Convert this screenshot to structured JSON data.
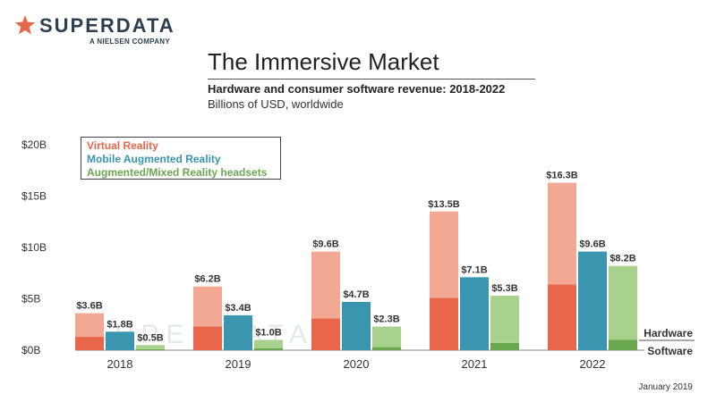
{
  "brand": {
    "name": "SUPERDATA",
    "tagline": "A NIELSEN COMPANY",
    "watermark": "SUPERDATA",
    "star_color": "#e8674a"
  },
  "title": "The Immersive Market",
  "subtitle": "Hardware and consumer software revenue: 2018-2022",
  "units": "Billions of USD, worldwide",
  "date": "January 2019",
  "chart_data": {
    "type": "bar",
    "categories": [
      "2018",
      "2019",
      "2020",
      "2021",
      "2022"
    ],
    "y_ticks": [
      "$0B",
      "$5B",
      "$10B",
      "$15B",
      "$20B"
    ],
    "ylim": [
      0,
      20
    ],
    "grid": false,
    "legend_position": "top-left",
    "stack_labels": {
      "top": "Hardware",
      "bottom": "Software"
    },
    "series": [
      {
        "name": "Virtual Reality",
        "color": "#e8674a",
        "light_color": "#f2a893",
        "totals": [
          3.6,
          6.2,
          9.6,
          13.5,
          16.3
        ],
        "labels": [
          "$3.6B",
          "$6.2B",
          "$9.6B",
          "$13.5B",
          "$16.3B"
        ],
        "software": [
          1.3,
          2.3,
          3.1,
          5.1,
          6.4
        ],
        "hardware": [
          2.3,
          3.9,
          6.5,
          8.4,
          9.9
        ]
      },
      {
        "name": "Mobile Augmented Reality",
        "color": "#3a95ae",
        "light_color": "#3a95ae",
        "totals": [
          1.8,
          3.4,
          4.7,
          7.1,
          9.6
        ],
        "labels": [
          "$1.8B",
          "$3.4B",
          "$4.7B",
          "$7.1B",
          "$9.6B"
        ],
        "software": [
          1.8,
          3.4,
          4.7,
          7.1,
          9.6
        ],
        "hardware": [
          0,
          0,
          0,
          0,
          0
        ]
      },
      {
        "name": "Augmented/Mixed Reality headsets",
        "color": "#6aa84f",
        "light_color": "#a9d18e",
        "totals": [
          0.5,
          1.0,
          2.3,
          5.3,
          8.2
        ],
        "labels": [
          "$0.5B",
          "$1.0B",
          "$2.3B",
          "$5.3B",
          "$8.2B"
        ],
        "software": [
          0.1,
          0.2,
          0.3,
          0.7,
          1.0
        ],
        "hardware": [
          0.4,
          0.8,
          2.0,
          4.6,
          7.2
        ]
      }
    ]
  }
}
